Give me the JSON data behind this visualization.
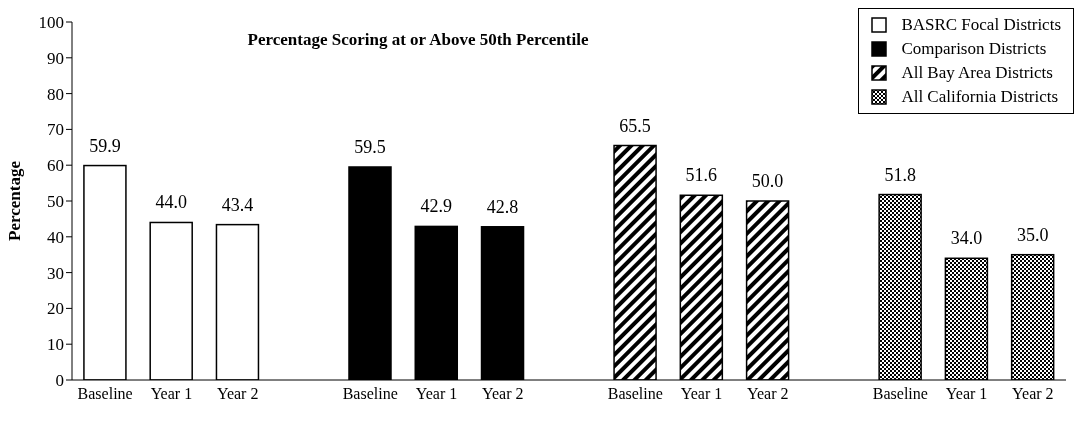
{
  "chart_data": {
    "type": "bar",
    "title": "Percentage Scoring at or Above 50th Percentile",
    "ylabel": "Percentage",
    "categories": [
      "Baseline",
      "Year 1",
      "Year 2",
      null,
      "Baseline",
      "Year 1",
      "Year 2",
      null,
      "Baseline",
      "Year 1",
      "Year 2",
      null,
      "Baseline",
      "Year 1",
      "Year 2"
    ],
    "series": [
      {
        "name": "BASRC Focal Districts",
        "color": "#ffffff",
        "values": [
          59.9,
          44.0,
          43.4,
          null,
          null,
          null,
          null,
          null,
          null,
          null,
          null,
          null,
          null,
          null,
          null
        ],
        "value_labels": [
          "59.9",
          "44.0",
          "43.4",
          null,
          null,
          null,
          null,
          null,
          null,
          null,
          null,
          null,
          null,
          null,
          null
        ]
      },
      {
        "name": "Comparison Districts",
        "color": "#000000",
        "values": [
          null,
          null,
          null,
          null,
          59.5,
          42.9,
          42.8,
          null,
          null,
          null,
          null,
          null,
          null,
          null,
          null
        ],
        "value_labels": [
          null,
          null,
          null,
          null,
          "59.5",
          "42.9",
          "42.8",
          null,
          null,
          null,
          null,
          null,
          null,
          null,
          null
        ]
      },
      {
        "name": "All Bay Area Districts",
        "color": "#000000",
        "values": [
          null,
          null,
          null,
          null,
          null,
          null,
          null,
          null,
          65.5,
          51.6,
          50.0,
          null,
          null,
          null,
          null
        ],
        "value_labels": [
          null,
          null,
          null,
          null,
          null,
          null,
          null,
          null,
          "65.5",
          "51.6",
          "50.0",
          null,
          null,
          null,
          null
        ]
      },
      {
        "name": "All California Districts",
        "color": "#000000",
        "values": [
          null,
          null,
          null,
          null,
          null,
          null,
          null,
          null,
          null,
          null,
          null,
          null,
          51.8,
          34.0,
          35.0
        ],
        "value_labels": [
          null,
          null,
          null,
          null,
          null,
          null,
          null,
          null,
          null,
          null,
          null,
          null,
          "51.8",
          "34.0",
          "35.0"
        ]
      }
    ],
    "ylim": [
      0,
      100
    ],
    "yticks": [
      0,
      10,
      20,
      30,
      40,
      50,
      60,
      70,
      80,
      90,
      100
    ],
    "grid": false,
    "legend": "top right"
  }
}
